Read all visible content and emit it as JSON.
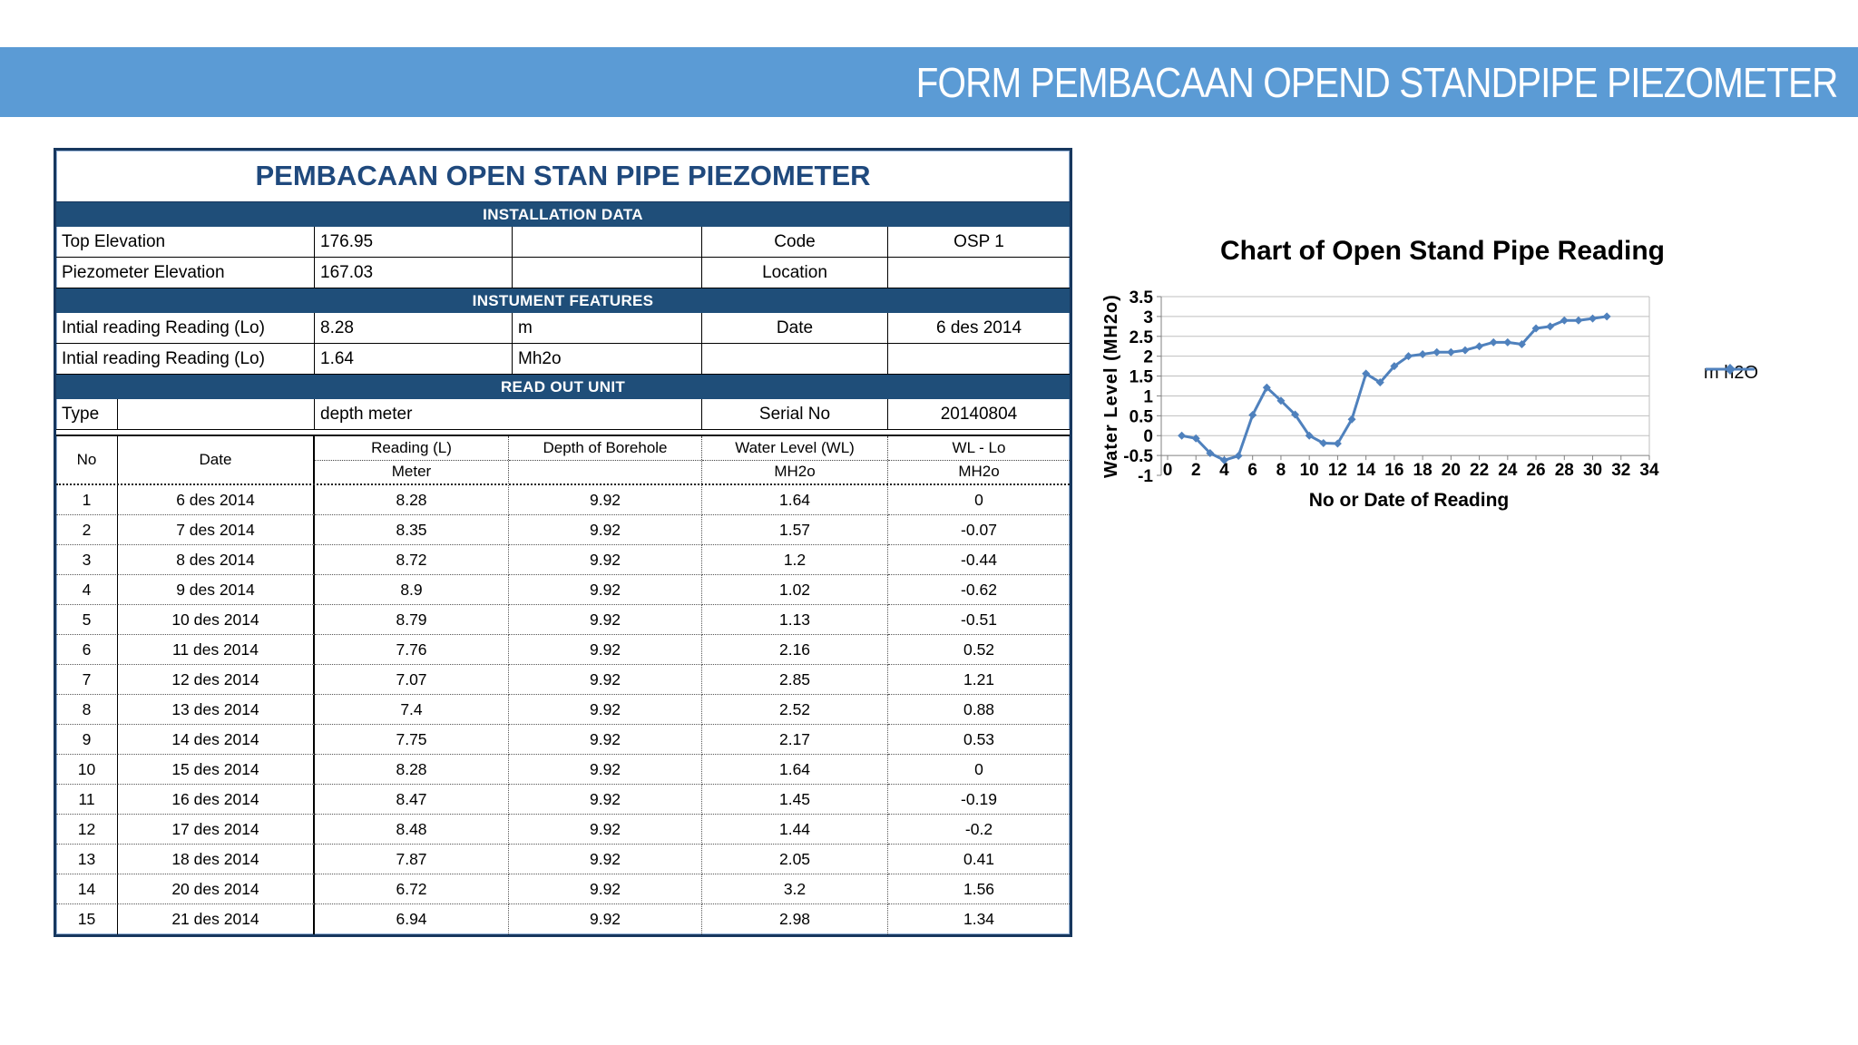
{
  "banner": {
    "title": "FORM PEMBACAAN OPEND STANDPIPE PIEZOMETER",
    "bg_color": "#5B9BD5"
  },
  "form": {
    "title": "PEMBACAAN OPEN STAN PIPE PIEZOMETER",
    "sections": {
      "installation": "INSTALLATION DATA",
      "instrument": "INSTUMENT FEATURES",
      "readout": "READ OUT UNIT"
    },
    "install_rows": [
      {
        "label": "Top Elevation",
        "value": "176.95",
        "unit": "",
        "key": "Code",
        "keyval": "OSP 1"
      },
      {
        "label": "Piezometer Elevation",
        "value": "167.03",
        "unit": "",
        "key": "Location",
        "keyval": ""
      }
    ],
    "instrument_rows": [
      {
        "label": "Intial reading  Reading (Lo)",
        "value": "8.28",
        "unit": "m",
        "key": "Date",
        "keyval": "6 des 2014"
      },
      {
        "label": "Intial reading  Reading (Lo)",
        "value": "1.64",
        "unit": "Mh2o",
        "key": "",
        "keyval": ""
      }
    ],
    "readout": {
      "label": "Type",
      "value": "depth meter",
      "key": "Serial No",
      "keyval": "20140804"
    },
    "table": {
      "headers": {
        "no": "No",
        "date": "Date",
        "reading": "Reading (L)",
        "reading_unit": "Meter",
        "depth": "Depth of Borehole",
        "wl": "Water Level (WL)",
        "wl_unit": "MH2o",
        "wllo": "WL - Lo",
        "wllo_unit": "MH2o"
      },
      "rows": [
        [
          "1",
          "6 des 2014",
          "8.28",
          "9.92",
          "1.64",
          "0"
        ],
        [
          "2",
          "7 des 2014",
          "8.35",
          "9.92",
          "1.57",
          "-0.07"
        ],
        [
          "3",
          "8 des 2014",
          "8.72",
          "9.92",
          "1.2",
          "-0.44"
        ],
        [
          "4",
          "9 des 2014",
          "8.9",
          "9.92",
          "1.02",
          "-0.62"
        ],
        [
          "5",
          "10 des 2014",
          "8.79",
          "9.92",
          "1.13",
          "-0.51"
        ],
        [
          "6",
          "11 des 2014",
          "7.76",
          "9.92",
          "2.16",
          "0.52"
        ],
        [
          "7",
          "12 des 2014",
          "7.07",
          "9.92",
          "2.85",
          "1.21"
        ],
        [
          "8",
          "13 des 2014",
          "7.4",
          "9.92",
          "2.52",
          "0.88"
        ],
        [
          "9",
          "14 des 2014",
          "7.75",
          "9.92",
          "2.17",
          "0.53"
        ],
        [
          "10",
          "15 des 2014",
          "8.28",
          "9.92",
          "1.64",
          "0"
        ],
        [
          "11",
          "16 des 2014",
          "8.47",
          "9.92",
          "1.45",
          "-0.19"
        ],
        [
          "12",
          "17 des 2014",
          "8.48",
          "9.92",
          "1.44",
          "-0.2"
        ],
        [
          "13",
          "18 des 2014",
          "7.87",
          "9.92",
          "2.05",
          "0.41"
        ],
        [
          "14",
          "20 des 2014",
          "6.72",
          "9.92",
          "3.2",
          "1.56"
        ],
        [
          "15",
          "21 des 2014",
          "6.94",
          "9.92",
          "2.98",
          "1.34"
        ]
      ]
    }
  },
  "chart_data": {
    "type": "line",
    "title": "Chart of Open Stand Pipe Reading",
    "xlabel": "No or Date of Reading",
    "ylabel": "Water Level  (MH2o)",
    "legend_position": "right",
    "grid": true,
    "xlim": [
      0,
      34
    ],
    "ylim": [
      -1,
      3.5
    ],
    "xticks": [
      0,
      2,
      4,
      6,
      8,
      10,
      12,
      14,
      16,
      18,
      20,
      22,
      24,
      26,
      28,
      30,
      32,
      34
    ],
    "yticks": [
      3.5,
      3,
      2.5,
      2,
      1.5,
      1,
      0.5,
      0,
      -0.5,
      -1
    ],
    "axis_cross_y": -0.5,
    "series": [
      {
        "name": "m h2O",
        "color": "#4F81BD",
        "marker": "diamond",
        "x": [
          1,
          2,
          3,
          4,
          5,
          6,
          7,
          8,
          9,
          10,
          11,
          12,
          13,
          14,
          15,
          16,
          17,
          18,
          19,
          20,
          21,
          22,
          23,
          24,
          25,
          26,
          27,
          28,
          29,
          30,
          31
        ],
        "y": [
          0,
          -0.07,
          -0.44,
          -0.62,
          -0.51,
          0.52,
          1.21,
          0.88,
          0.53,
          0,
          -0.19,
          -0.2,
          0.41,
          1.56,
          1.34,
          1.75,
          2,
          2.05,
          2.1,
          2.1,
          2.15,
          2.25,
          2.35,
          2.35,
          2.3,
          2.7,
          2.75,
          2.9,
          2.9,
          2.95,
          3
        ]
      }
    ]
  }
}
